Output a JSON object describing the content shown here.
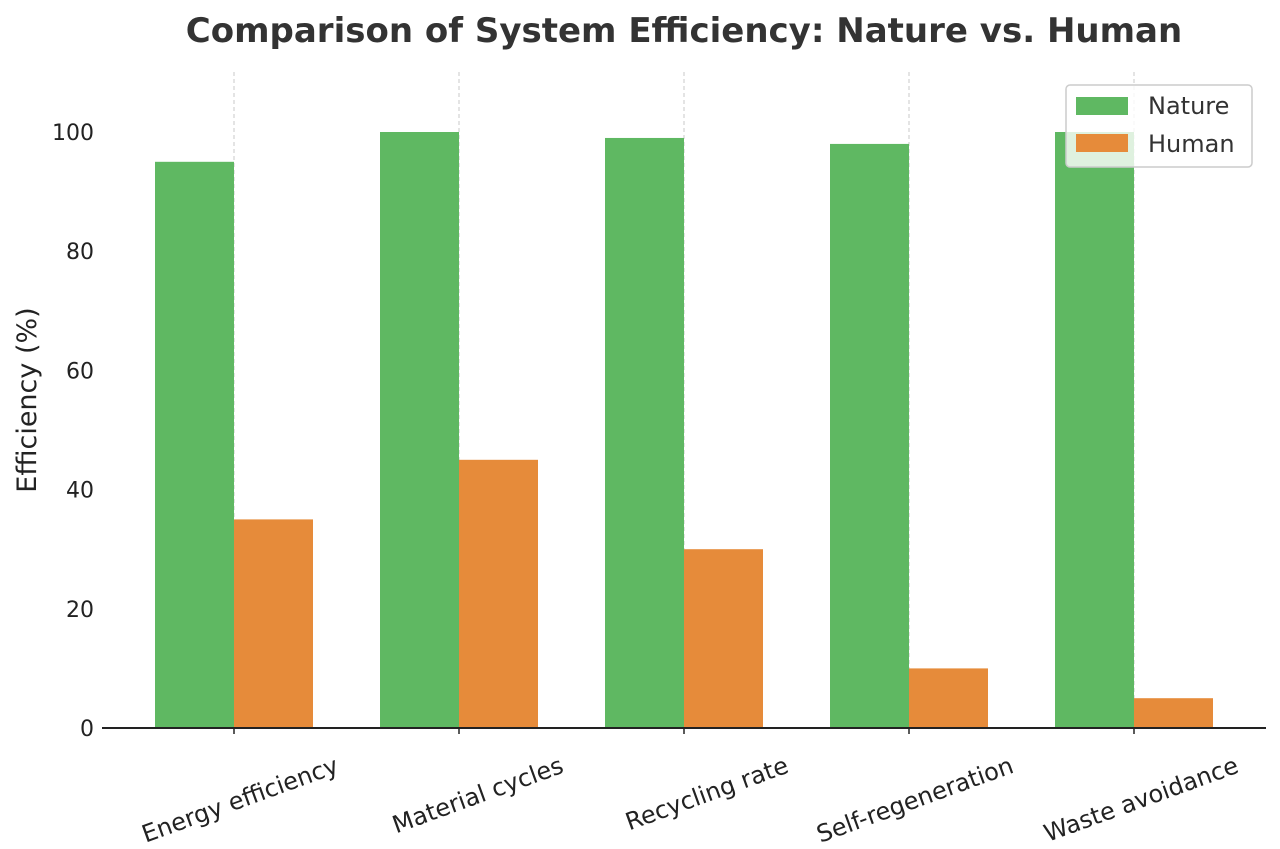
{
  "chart_data": {
    "type": "bar",
    "title": "Comparison of System Efficiency: Nature vs. Human",
    "xlabel": "",
    "ylabel": "Efficiency (%)",
    "categories": [
      "Energy efficiency",
      "Material cycles",
      "Recycling rate",
      "Self-regeneration",
      "Waste avoidance"
    ],
    "series": [
      {
        "name": "Nature",
        "color": "#5fb862",
        "values": [
          95,
          100,
          99,
          98,
          100
        ]
      },
      {
        "name": "Human",
        "color": "#e68b3a",
        "values": [
          35,
          45,
          30,
          10,
          5
        ]
      }
    ],
    "ylim": [
      0,
      110
    ],
    "yticks": [
      0,
      20,
      40,
      60,
      80,
      100
    ],
    "grid": {
      "x": true,
      "y": false
    },
    "legend": "top-right"
  }
}
